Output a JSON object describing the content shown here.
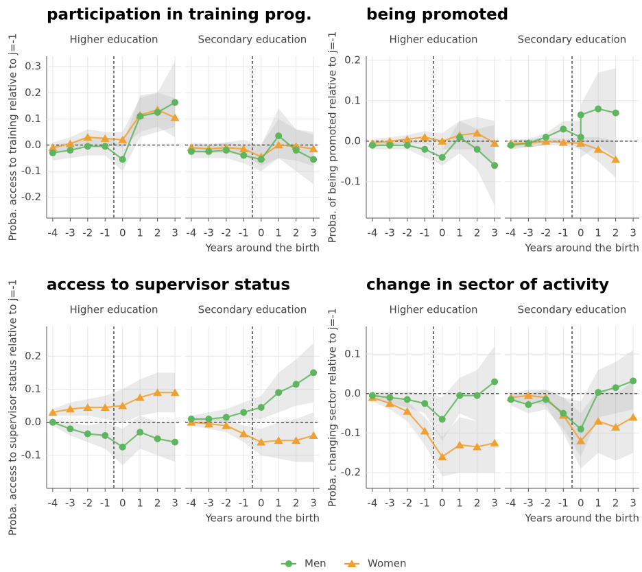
{
  "chart_data": [
    {
      "type": "line",
      "title": "participation in training prog.",
      "ylabel": "Proba. access to training relative to j=-1",
      "xlabel": "Years around the birth",
      "x": [
        -4,
        -3,
        -2,
        -1,
        0,
        1,
        2,
        3
      ],
      "xlim": [
        -4.35,
        3.35
      ],
      "xticks": [
        -4,
        -3,
        -2,
        -1,
        0,
        1,
        2,
        3
      ],
      "ylim": [
        -0.28,
        0.34
      ],
      "yticks": [
        -0.2,
        -0.1,
        {
          "value": 0,
          "label": "0.0"
        },
        0.1,
        0.2,
        0.3
      ],
      "grid": true,
      "vline": -0.5,
      "hline": 0,
      "facets": [
        {
          "title": "Higher education",
          "series": [
            {
              "name": "Men",
              "color": "#5db55d",
              "marker": "circle",
              "values": [
                -0.03,
                -0.02,
                -0.005,
                -0.005,
                -0.055,
                0.11,
                0.125,
                0.163
              ],
              "lower": [
                -0.06,
                -0.05,
                -0.04,
                -0.04,
                -0.1,
                0.03,
                0.05,
                0.07
              ],
              "upper": [
                0,
                0.01,
                0.03,
                0.03,
                0,
                0.19,
                0.2,
                0.32
              ]
            },
            {
              "name": "Women",
              "color": "#f0a030",
              "marker": "triangle",
              "values": [
                -0.01,
                0.005,
                0.03,
                0.025,
                0.02,
                0.115,
                0.135,
                0.105
              ],
              "lower": [
                -0.03,
                -0.02,
                0,
                0,
                -0.01,
                0.05,
                0.07,
                0.03
              ],
              "upper": [
                0.01,
                0.03,
                0.06,
                0.05,
                0.05,
                0.18,
                0.2,
                0.18
              ]
            }
          ]
        },
        {
          "title": "Secondary education",
          "series": [
            {
              "name": "Men",
              "color": "#5db55d",
              "marker": "circle",
              "values": [
                -0.025,
                -0.025,
                -0.02,
                -0.04,
                -0.055,
                0.035,
                -0.02,
                -0.055
              ],
              "lower": [
                -0.05,
                -0.05,
                -0.05,
                -0.07,
                -0.1,
                -0.05,
                -0.1,
                -0.15
              ],
              "upper": [
                0,
                0,
                0.01,
                0,
                0,
                0.14,
                0.06,
                0.04
              ]
            },
            {
              "name": "Women",
              "color": "#f0a030",
              "marker": "triangle",
              "values": [
                -0.01,
                -0.015,
                -0.01,
                -0.015,
                -0.045,
                0,
                -0.005,
                -0.015
              ],
              "lower": [
                -0.03,
                -0.03,
                -0.03,
                -0.04,
                -0.08,
                -0.05,
                -0.06,
                -0.08
              ],
              "upper": [
                0.01,
                0.005,
                0.01,
                0.02,
                0,
                0.1,
                0.06,
                0.05
              ]
            }
          ]
        }
      ]
    },
    {
      "type": "line",
      "title": "being promoted",
      "ylabel": "Proba. of being promoted relative to j=-1",
      "xlabel": "Years around the birth",
      "x": [
        -4,
        -3,
        -2,
        -1,
        0,
        1,
        2,
        3
      ],
      "xlim": [
        -4.35,
        3.35
      ],
      "xticks": [
        -4,
        -3,
        -2,
        -1,
        0,
        1,
        2,
        3
      ],
      "ylim": [
        -0.19,
        0.21
      ],
      "yticks": [
        -0.1,
        {
          "value": 0,
          "label": "0.0"
        },
        0.1,
        0.2
      ],
      "grid": true,
      "vline": -0.5,
      "hline": 0,
      "facets": [
        {
          "title": "Higher education",
          "series": [
            {
              "name": "Men",
              "color": "#5db55d",
              "marker": "circle",
              "values": [
                -0.01,
                -0.01,
                -0.01,
                -0.02,
                -0.04,
                0.01,
                -0.02,
                -0.06
              ],
              "lower": [
                -0.02,
                -0.02,
                -0.02,
                -0.04,
                -0.06,
                -0.03,
                -0.07,
                -0.16
              ],
              "upper": [
                0,
                0,
                0.005,
                0,
                -0.02,
                0.05,
                0.03,
                0.04
              ]
            },
            {
              "name": "Women",
              "color": "#f0a030",
              "marker": "triangle",
              "values": [
                -0.005,
                0,
                0.005,
                0.01,
                0,
                0.015,
                0.02,
                -0.005
              ],
              "lower": [
                -0.015,
                -0.01,
                -0.005,
                -0.005,
                -0.02,
                -0.02,
                -0.02,
                -0.06
              ],
              "upper": [
                0.005,
                0.01,
                0.015,
                0.025,
                0.02,
                0.05,
                0.06,
                0.05
              ]
            }
          ]
        },
        {
          "title": "Secondary education",
          "series": [
            {
              "name": "Men",
              "color": "#5db55d",
              "marker": "circle",
              "x": [
                -4,
                -3,
                -2,
                -1,
                0,
                0,
                1,
                2
              ],
              "values": [
                -0.01,
                -0.005,
                0.01,
                0.03,
                0.01,
                0.065,
                0.08,
                0.07
              ],
              "lower": [
                -0.02,
                -0.015,
                -0.01,
                0.005,
                -0.02,
                -0.04,
                -0.01,
                -0.04
              ],
              "upper": [
                0,
                0.005,
                0.02,
                0.05,
                0.05,
                0.09,
                0.17,
                0.18
              ]
            },
            {
              "name": "Women",
              "color": "#f0a030",
              "marker": "triangle",
              "x": [
                -4,
                -3,
                -2,
                -1,
                0,
                1,
                2
              ],
              "values": [
                -0.005,
                -0.005,
                0,
                -0.003,
                -0.005,
                -0.02,
                -0.045
              ],
              "lower": [
                -0.015,
                -0.015,
                -0.01,
                -0.01,
                -0.02,
                -0.05,
                -0.09
              ],
              "upper": [
                0.005,
                0.005,
                0.01,
                0.005,
                0.01,
                0.01,
                0
              ]
            }
          ]
        }
      ]
    },
    {
      "type": "line",
      "title": "access to supervisor status",
      "ylabel": "Proba. access to supervisor status relative to j=-1",
      "xlabel": "Years around the birth",
      "x": [
        -4,
        -3,
        -2,
        -1,
        0,
        1,
        2,
        3
      ],
      "xlim": [
        -4.35,
        3.35
      ],
      "xticks": [
        -4,
        -3,
        -2,
        -1,
        0,
        1,
        2,
        3
      ],
      "ylim": [
        -0.2,
        0.29
      ],
      "yticks": [
        -0.1,
        {
          "value": 0,
          "label": "0.0"
        },
        0.1,
        0.2
      ],
      "grid": true,
      "vline": -0.5,
      "hline": 0,
      "facets": [
        {
          "title": "Higher education",
          "series": [
            {
              "name": "Men",
              "color": "#5db55d",
              "marker": "circle",
              "values": [
                0,
                -0.02,
                -0.035,
                -0.04,
                -0.075,
                -0.03,
                -0.05,
                -0.06
              ],
              "lower": [
                -0.01,
                -0.04,
                -0.06,
                -0.08,
                -0.13,
                -0.08,
                -0.1,
                -0.12
              ],
              "upper": [
                0.01,
                0,
                -0.01,
                0,
                -0.02,
                0.02,
                0,
                0
              ]
            },
            {
              "name": "Women",
              "color": "#f0a030",
              "marker": "triangle",
              "values": [
                0.03,
                0.04,
                0.045,
                0.045,
                0.05,
                0.075,
                0.09,
                0.09
              ],
              "lower": [
                0.02,
                0.02,
                0.02,
                0.01,
                0,
                0.02,
                0.03,
                0.03
              ],
              "upper": [
                0.04,
                0.06,
                0.07,
                0.08,
                0.1,
                0.13,
                0.15,
                0.15
              ]
            }
          ]
        },
        {
          "title": "Secondary education",
          "series": [
            {
              "name": "Men",
              "color": "#5db55d",
              "marker": "circle",
              "values": [
                0.01,
                0.01,
                0.015,
                0.03,
                0.045,
                0.09,
                0.115,
                0.15
              ],
              "lower": [
                0,
                0,
                0,
                0.01,
                0.01,
                0.03,
                0.05,
                0.06
              ],
              "upper": [
                0.02,
                0.03,
                0.04,
                0.06,
                0.08,
                0.15,
                0.19,
                0.24
              ]
            },
            {
              "name": "Women",
              "color": "#f0a030",
              "marker": "triangle",
              "values": [
                0,
                -0.005,
                -0.01,
                -0.035,
                -0.06,
                -0.055,
                -0.055,
                -0.04
              ],
              "lower": [
                -0.01,
                -0.02,
                -0.03,
                -0.06,
                -0.1,
                -0.11,
                -0.12,
                -0.12
              ],
              "upper": [
                0.01,
                0.01,
                0.01,
                -0.01,
                -0.02,
                0,
                0.01,
                0.03
              ]
            }
          ]
        }
      ]
    },
    {
      "type": "line",
      "title": "change in sector of activity",
      "ylabel": "Proba. changing sector relative to j=-1",
      "xlabel": "Years around the birth",
      "x": [
        -4,
        -3,
        -2,
        -1,
        0,
        1,
        2,
        3
      ],
      "xlim": [
        -4.35,
        3.35
      ],
      "xticks": [
        -4,
        -3,
        -2,
        -1,
        0,
        1,
        2,
        3
      ],
      "ylim": [
        -0.24,
        0.17
      ],
      "yticks": [
        -0.2,
        -0.1,
        {
          "value": 0,
          "label": "0.0"
        },
        0.1
      ],
      "grid": true,
      "vline": -0.5,
      "hline": 0,
      "facets": [
        {
          "title": "Higher education",
          "series": [
            {
              "name": "Men",
              "color": "#5db55d",
              "marker": "circle",
              "values": [
                -0.005,
                -0.01,
                -0.015,
                -0.025,
                -0.065,
                -0.005,
                -0.005,
                0.03
              ],
              "lower": [
                -0.015,
                -0.025,
                -0.035,
                -0.05,
                -0.12,
                -0.05,
                -0.07,
                -0.05
              ],
              "upper": [
                0.005,
                0.005,
                0.005,
                0,
                -0.01,
                0.04,
                0.06,
                0.12
              ]
            },
            {
              "name": "Women",
              "color": "#f0a030",
              "marker": "triangle",
              "values": [
                -0.01,
                -0.025,
                -0.045,
                -0.095,
                -0.16,
                -0.13,
                -0.135,
                -0.125
              ],
              "lower": [
                -0.02,
                -0.04,
                -0.07,
                -0.13,
                -0.21,
                -0.2,
                -0.2,
                -0.2
              ],
              "upper": [
                0,
                -0.01,
                -0.02,
                -0.06,
                -0.11,
                -0.06,
                -0.07,
                -0.05
              ]
            }
          ]
        },
        {
          "title": "Secondary education",
          "series": [
            {
              "name": "Men",
              "color": "#5db55d",
              "marker": "circle",
              "values": [
                -0.015,
                -0.028,
                -0.015,
                -0.05,
                -0.09,
                0.003,
                0.015,
                0.032
              ],
              "lower": [
                -0.03,
                -0.05,
                -0.04,
                -0.09,
                -0.16,
                -0.06,
                -0.05,
                -0.04
              ],
              "upper": [
                0,
                0,
                0.01,
                -0.01,
                -0.02,
                0.06,
                0.08,
                0.11
              ]
            },
            {
              "name": "Women",
              "color": "#f0a030",
              "marker": "triangle",
              "values": [
                -0.01,
                -0.005,
                -0.01,
                -0.055,
                -0.12,
                -0.07,
                -0.085,
                -0.06
              ],
              "lower": [
                -0.02,
                -0.02,
                -0.03,
                -0.1,
                -0.19,
                -0.15,
                -0.17,
                -0.15
              ],
              "upper": [
                0,
                0.01,
                0.01,
                -0.01,
                -0.05,
                0.01,
                0,
                0.03
              ]
            }
          ]
        }
      ]
    }
  ]
}
